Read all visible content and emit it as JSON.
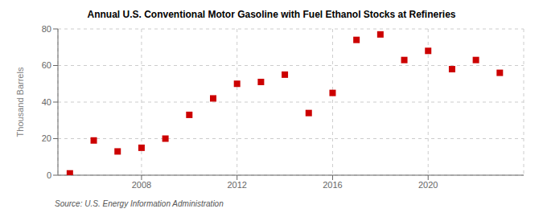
{
  "chart_data": {
    "type": "scatter",
    "title": "Annual U.S. Conventional Motor Gasoline with Fuel Ethanol Stocks at Refineries",
    "ylabel": "Thousand Barrels",
    "annotations": [
      "Source: U.S. Energy Information Administration"
    ],
    "x": [
      2005,
      2006,
      2007,
      2008,
      2009,
      2010,
      2011,
      2012,
      2013,
      2014,
      2015,
      2016,
      2017,
      2018,
      2019,
      2020,
      2021,
      2022,
      2023
    ],
    "values": [
      1,
      19,
      13,
      15,
      20,
      33,
      42,
      50,
      51,
      55,
      34,
      45,
      74,
      77,
      63,
      68,
      58,
      63,
      56
    ],
    "color": "#cc0000",
    "marker": "square",
    "xlim": [
      2004.5,
      2024.0
    ],
    "xticks": [
      2008,
      2012,
      2016,
      2020
    ],
    "ylim": [
      0,
      80
    ],
    "yticks": [
      0,
      20,
      40,
      60,
      80
    ],
    "grid": true
  }
}
